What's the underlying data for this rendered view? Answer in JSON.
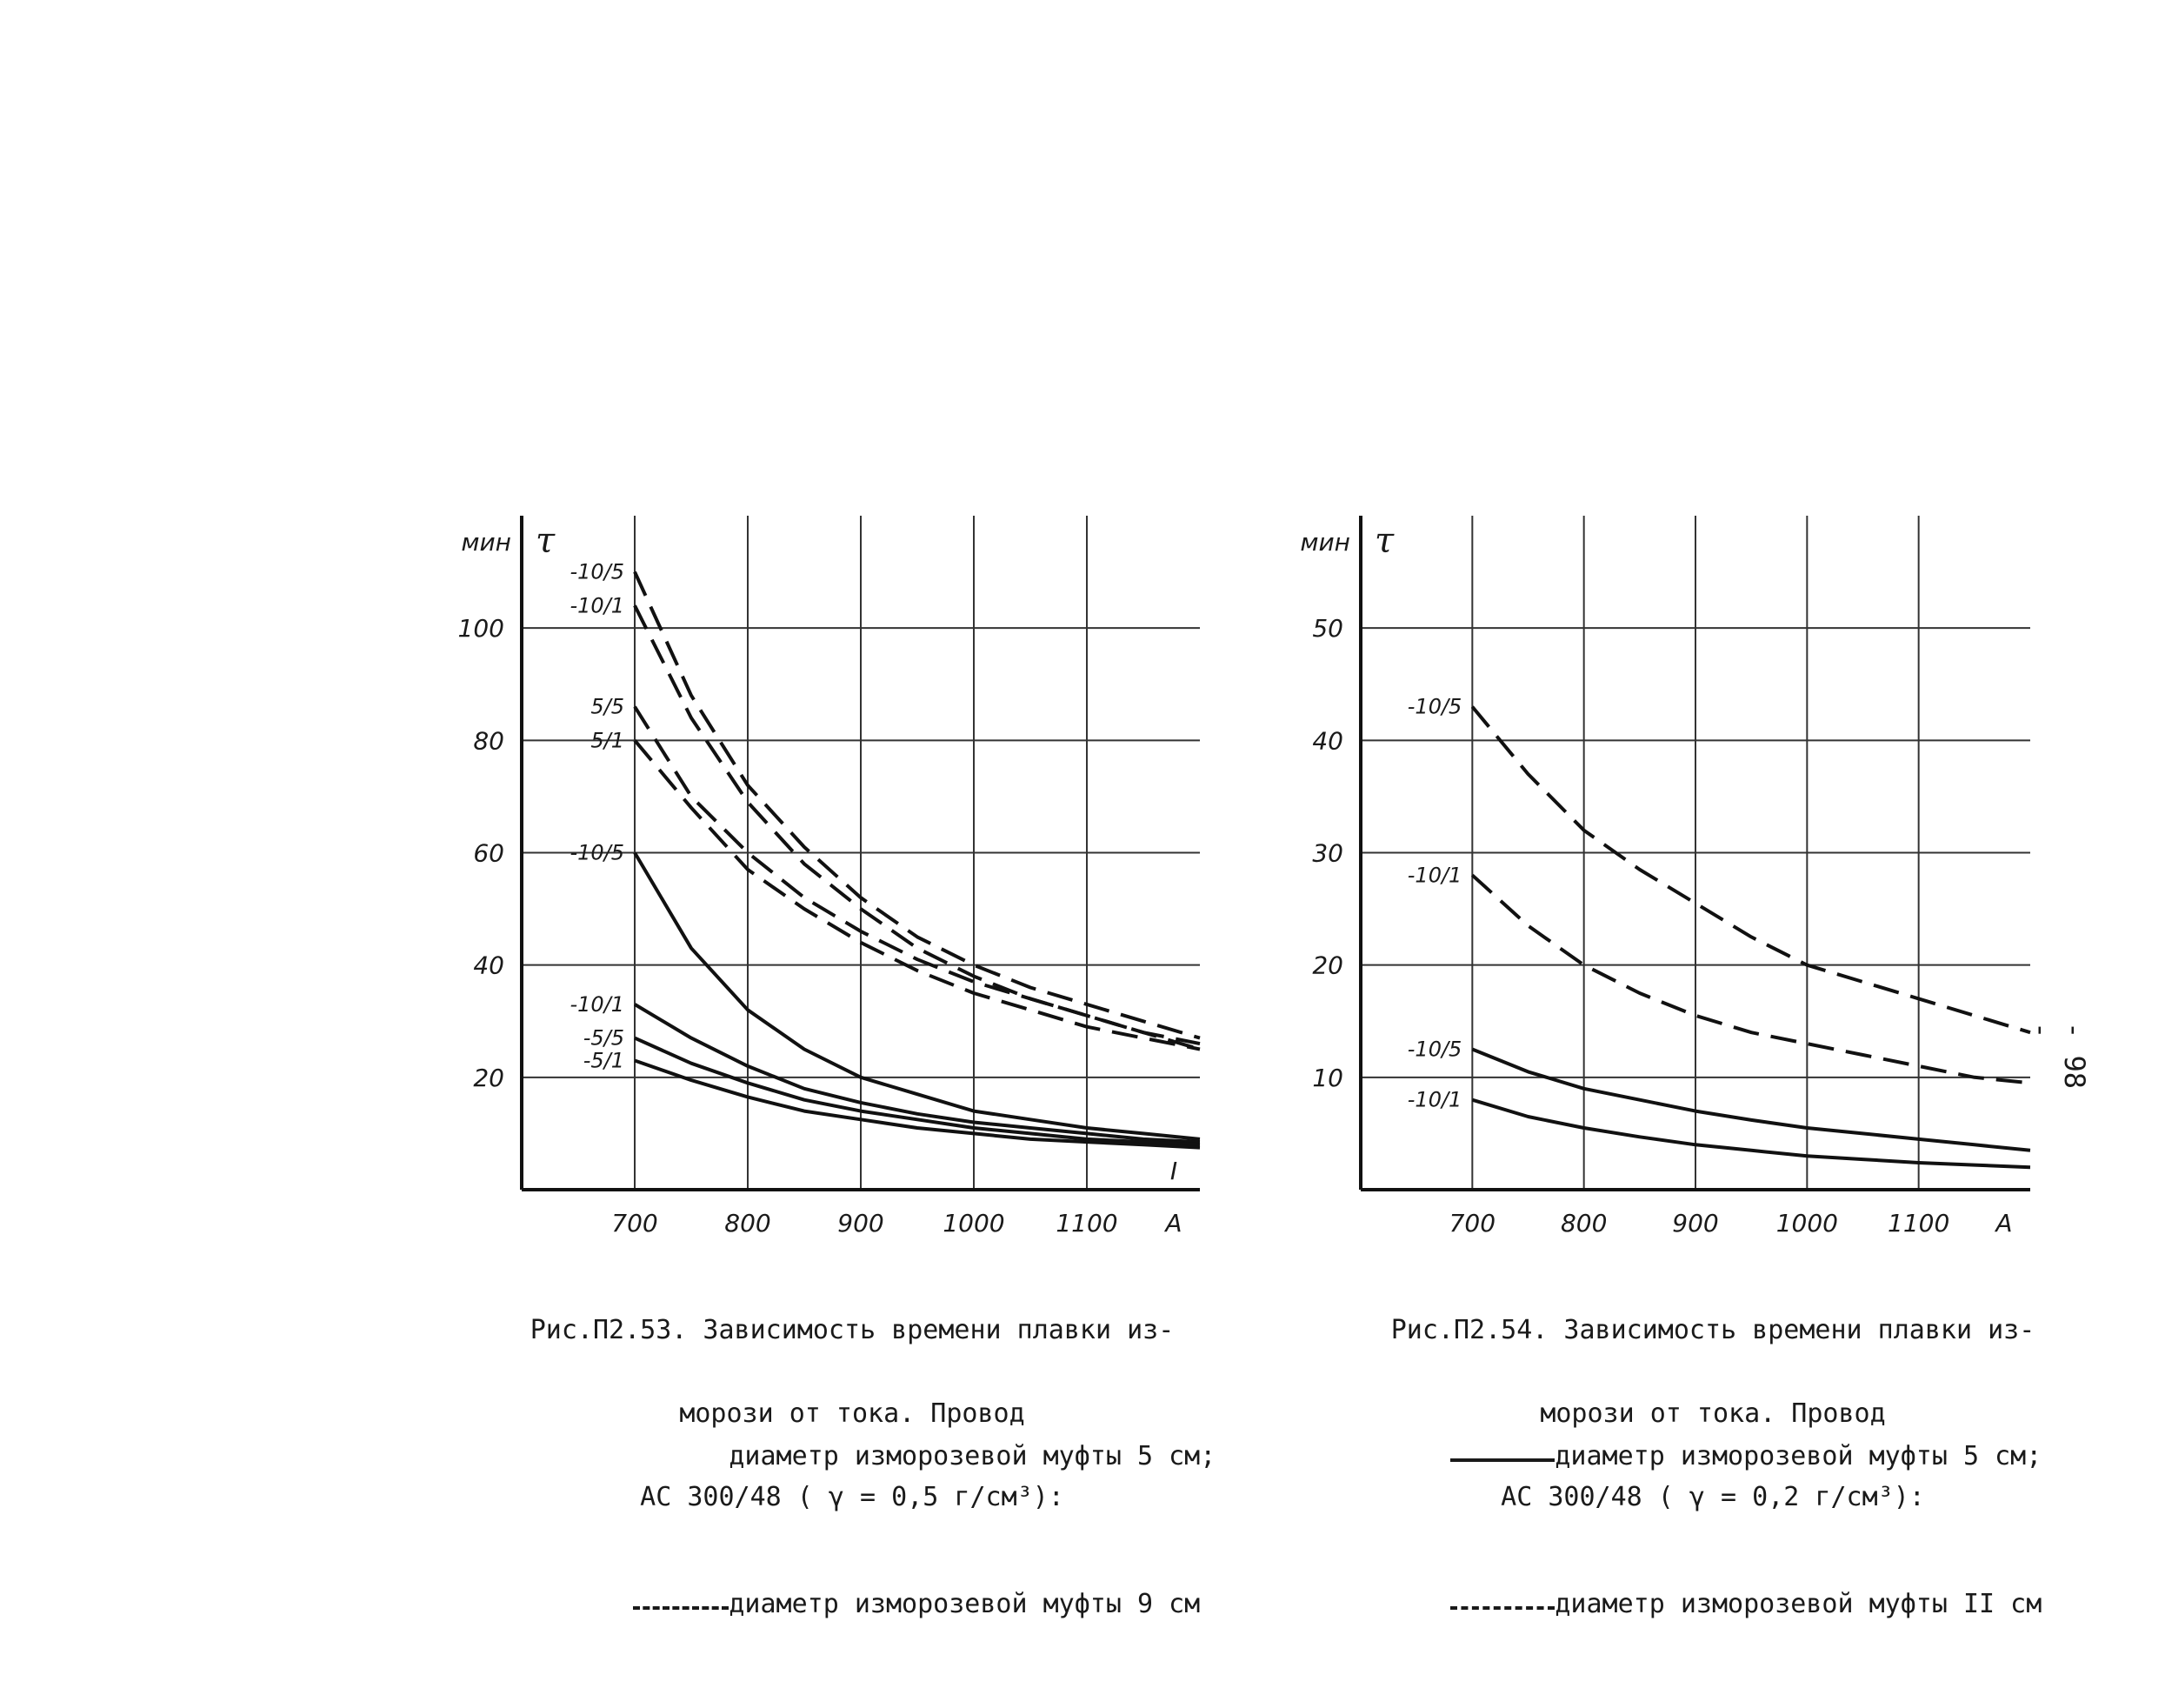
{
  "page_number": "- 98 -",
  "chart_data": [
    {
      "type": "line",
      "figure": "Рис.П2.53",
      "caption": [
        "Рис.П2.53. Зависимость времени плавки из-",
        "морози от тока. Провод",
        "АС 300/48 ( γ = 0,5 г/см³):"
      ],
      "legend": [
        {
          "style": "solid",
          "text": "диаметр изморозевой муфты 5 см;"
        },
        {
          "style": "dashed",
          "text": "диаметр изморозевой муфты 9 см"
        }
      ],
      "ylabel_unit": "мин",
      "ylabel": "τ",
      "xlabel_unit": "А",
      "xlabel": "I",
      "x_ticks": [
        "700",
        "800",
        "900",
        "1000",
        "1100"
      ],
      "y_ticks": [
        "20",
        "40",
        "60",
        "80",
        "100"
      ],
      "xlim": [
        600,
        1200
      ],
      "ylim": [
        0,
        120
      ],
      "series": [
        {
          "name": "-10/5",
          "style": "dashed",
          "x": [
            700,
            750,
            800,
            850,
            900,
            950,
            1000,
            1050,
            1100,
            1150,
            1200
          ],
          "y": [
            110,
            88,
            72,
            61,
            52,
            45,
            40,
            36,
            33,
            30,
            27
          ]
        },
        {
          "name": "-10/1",
          "style": "dashed",
          "x": [
            700,
            750,
            800,
            850,
            900,
            950,
            1000,
            1050,
            1100,
            1150,
            1200
          ],
          "y": [
            104,
            84,
            69,
            58,
            50,
            43,
            38,
            34,
            31,
            28,
            26
          ]
        },
        {
          "name": "5/5",
          "style": "dashed",
          "x": [
            700,
            750,
            800,
            850,
            900,
            950,
            1000,
            1050,
            1100,
            1150,
            1200
          ],
          "y": [
            86,
            70,
            60,
            52,
            46,
            41,
            37,
            34,
            31,
            28,
            25
          ]
        },
        {
          "name": "5/1",
          "style": "dashed",
          "x": [
            700,
            750,
            800,
            850,
            900,
            950,
            1000,
            1050,
            1100,
            1150,
            1200
          ],
          "y": [
            80,
            68,
            57,
            50,
            44,
            39,
            35,
            32,
            29,
            27,
            25
          ]
        },
        {
          "name": "-10/5",
          "style": "solid",
          "x": [
            700,
            750,
            800,
            850,
            900,
            950,
            1000,
            1050,
            1100,
            1150,
            1200
          ],
          "y": [
            60,
            43,
            32,
            25,
            20,
            17,
            14,
            12.5,
            11,
            10,
            9
          ]
        },
        {
          "name": "-10/1",
          "style": "solid",
          "x": [
            700,
            750,
            800,
            850,
            900,
            950,
            1000,
            1050,
            1100,
            1150,
            1200
          ],
          "y": [
            33,
            27,
            22,
            18,
            15.5,
            13.5,
            12,
            11,
            10,
            9,
            8.5
          ]
        },
        {
          "name": "-5/5",
          "style": "solid",
          "x": [
            700,
            750,
            800,
            850,
            900,
            950,
            1000,
            1050,
            1100,
            1150,
            1200
          ],
          "y": [
            27,
            22.5,
            19,
            16,
            14,
            12.5,
            11,
            10,
            9,
            8.5,
            8
          ]
        },
        {
          "name": "-5/1",
          "style": "solid",
          "x": [
            700,
            750,
            800,
            850,
            900,
            950,
            1000,
            1050,
            1100,
            1150,
            1200
          ],
          "y": [
            23,
            19.5,
            16.5,
            14,
            12.5,
            11,
            10,
            9,
            8.5,
            8,
            7.5
          ]
        }
      ]
    },
    {
      "type": "line",
      "figure": "Рис.П2.54",
      "caption": [
        "Рис.П2.54. Зависимость времени плавки из-",
        "морози от тока. Провод",
        "АС 300/48 ( γ = 0,2 г/см³):"
      ],
      "legend": [
        {
          "style": "solid",
          "text": "диаметр изморозевой муфты 5 см;"
        },
        {
          "style": "dashed",
          "text": "диаметр изморозевой муфты II см"
        }
      ],
      "ylabel_unit": "мин",
      "ylabel": "τ",
      "xlabel_unit": "А",
      "x_ticks": [
        "700",
        "800",
        "900",
        "1000",
        "1100"
      ],
      "y_ticks": [
        "10",
        "20",
        "30",
        "40",
        "50"
      ],
      "xlim": [
        600,
        1200
      ],
      "ylim": [
        0,
        60
      ],
      "series": [
        {
          "name": "-10/5",
          "style": "dashed",
          "x": [
            700,
            750,
            800,
            850,
            900,
            950,
            1000,
            1050,
            1100,
            1150,
            1200
          ],
          "y": [
            43,
            37,
            32,
            28.5,
            25.5,
            22.5,
            20,
            18.5,
            17,
            15.5,
            14
          ]
        },
        {
          "name": "-10/1",
          "style": "dashed",
          "x": [
            700,
            750,
            800,
            850,
            900,
            950,
            1000,
            1050,
            1100,
            1150,
            1200
          ],
          "y": [
            28,
            23.5,
            20,
            17.5,
            15.5,
            14,
            13,
            12,
            11,
            10,
            9.5
          ]
        },
        {
          "name": "-10/5",
          "style": "solid",
          "x": [
            700,
            750,
            800,
            850,
            900,
            950,
            1000,
            1050,
            1100,
            1150,
            1200
          ],
          "y": [
            12.5,
            10.5,
            9,
            8,
            7,
            6.2,
            5.5,
            5,
            4.5,
            4,
            3.5
          ]
        },
        {
          "name": "-10/1",
          "style": "solid",
          "x": [
            700,
            750,
            800,
            850,
            900,
            950,
            1000,
            1050,
            1100,
            1150,
            1200
          ],
          "y": [
            8,
            6.5,
            5.5,
            4.7,
            4,
            3.5,
            3,
            2.7,
            2.4,
            2.2,
            2
          ]
        }
      ]
    }
  ]
}
